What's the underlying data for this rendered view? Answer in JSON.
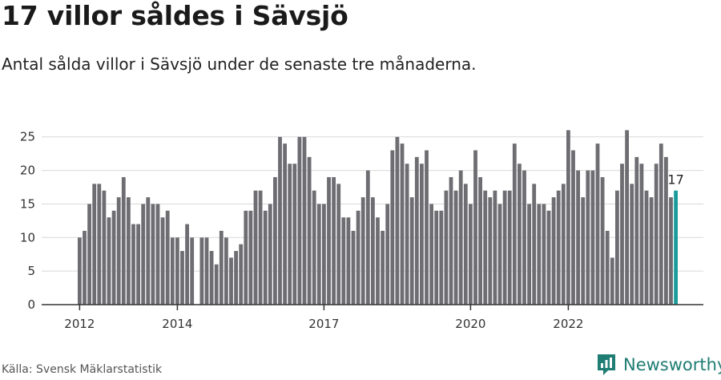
{
  "header": {
    "title": "17 villor såldes i Sävsjö",
    "subtitle": "Antal sålda villor i Sävsjö under de senaste tre månaderna."
  },
  "footer": {
    "source": "Källa: Svensk Mäklarstatistik",
    "brand": "Newsworthy"
  },
  "colors": {
    "bar": "#6e6d72",
    "highlight": "#1a9c9a",
    "grid": "#d9d9d9",
    "axis": "#333333",
    "brand": "#1f7d73"
  },
  "chart_data": {
    "type": "bar",
    "title": "Antal sålda villor",
    "ylim": [
      0,
      27
    ],
    "yticks": [
      0,
      5,
      10,
      15,
      20,
      25
    ],
    "x_tick_labels": [
      {
        "label": "2012",
        "index": 0
      },
      {
        "label": "2014",
        "index": 20
      },
      {
        "label": "2017",
        "index": 50
      },
      {
        "label": "2020",
        "index": 80
      },
      {
        "label": "2022",
        "index": 100
      }
    ],
    "values": [
      10,
      11,
      15,
      18,
      18,
      17,
      13,
      14,
      16,
      19,
      16,
      12,
      12,
      15,
      16,
      15,
      15,
      13,
      14,
      10,
      10,
      8,
      12,
      10,
      0,
      10,
      10,
      8,
      6,
      11,
      10,
      7,
      8,
      9,
      14,
      14,
      17,
      17,
      14,
      15,
      19,
      25,
      24,
      21,
      21,
      25,
      25,
      22,
      17,
      15,
      15,
      19,
      19,
      18,
      13,
      13,
      11,
      14,
      16,
      20,
      16,
      13,
      11,
      15,
      23,
      25,
      24,
      21,
      16,
      22,
      21,
      23,
      15,
      14,
      14,
      17,
      19,
      17,
      20,
      18,
      15,
      23,
      19,
      17,
      16,
      17,
      15,
      17,
      17,
      24,
      21,
      20,
      15,
      18,
      15,
      15,
      14,
      16,
      17,
      18,
      26,
      23,
      20,
      16,
      20,
      20,
      24,
      19,
      11,
      7,
      17,
      21,
      26,
      18,
      22,
      21,
      17,
      16,
      21,
      24,
      22,
      16,
      17
    ],
    "highlight_index": 122,
    "highlight_label": "17"
  }
}
